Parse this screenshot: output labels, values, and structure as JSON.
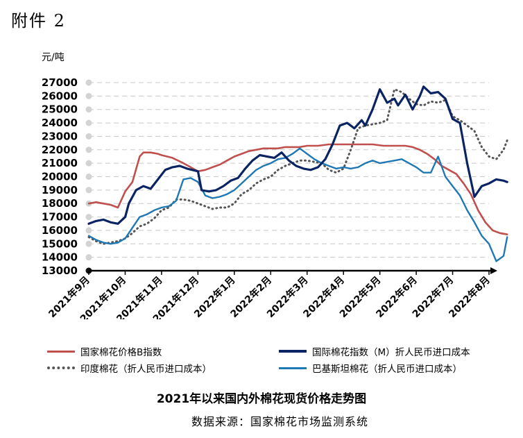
{
  "header": {
    "attachment": "附件 2",
    "unit": "元/吨"
  },
  "footer": {
    "title": "2021年以来国内外棉花现货价格走势图",
    "source": "数据来源：国家棉花市场监测系统"
  },
  "chart_data": {
    "type": "line",
    "title": "2021年以来国内外棉花现货价格走势图",
    "ylabel": "元/吨",
    "ylim": [
      13000,
      27000
    ],
    "ytick_step": 1000,
    "yticks": [
      "13000",
      "14000",
      "15000",
      "16000",
      "17000",
      "18000",
      "19000",
      "20000",
      "21000",
      "22000",
      "23000",
      "24000",
      "25000",
      "26000",
      "27000"
    ],
    "xticks": [
      "2021年9月",
      "2021年10月",
      "2021年11月",
      "2021年12月",
      "2022年1月",
      "2022年2月",
      "2022年3月",
      "2022年4月",
      "2022年5月",
      "2022年6月",
      "2022年7月",
      "2022年8月"
    ],
    "grid": true,
    "legend_position": "bottom",
    "colors": {
      "domestic": "#c0504d",
      "international": "#0a2463",
      "india": "#555555",
      "pakistan": "#1f78b4"
    },
    "series": [
      {
        "name": "国家棉花价格B指数",
        "style": "solid",
        "x": [
          0,
          0.2,
          0.4,
          0.6,
          0.8,
          1.0,
          1.2,
          1.4,
          1.5,
          1.7,
          1.9,
          2.0,
          2.3,
          2.6,
          2.8,
          3.0,
          3.2,
          3.4,
          3.6,
          3.8,
          4.0,
          4.2,
          4.4,
          4.6,
          4.8,
          5.0,
          5.2,
          5.4,
          5.6,
          5.8,
          6.0,
          6.3,
          6.6,
          6.9,
          7.2,
          7.5,
          7.8,
          8.1,
          8.4,
          8.7,
          8.9,
          9.1,
          9.3,
          9.5,
          9.7,
          9.9,
          10.1,
          10.3,
          10.5,
          10.7,
          10.9,
          11.1,
          11.3,
          11.5
        ],
        "y": [
          18000,
          18100,
          18000,
          17900,
          17700,
          18900,
          19600,
          21500,
          21800,
          21800,
          21700,
          21600,
          21400,
          21000,
          20700,
          20400,
          20500,
          20700,
          20900,
          21200,
          21500,
          21700,
          21900,
          22000,
          22100,
          22100,
          22100,
          22200,
          22200,
          22200,
          22300,
          22300,
          22400,
          22400,
          22400,
          22400,
          22400,
          22300,
          22300,
          22300,
          22200,
          22000,
          21700,
          21300,
          20800,
          20500,
          20200,
          19500,
          18700,
          17500,
          16600,
          16000,
          15800,
          15700
        ]
      },
      {
        "name": "国际棉花指数（M）折人民币进口成本",
        "style": "solid",
        "x": [
          0,
          0.2,
          0.4,
          0.6,
          0.8,
          1.0,
          1.1,
          1.3,
          1.5,
          1.7,
          1.9,
          2.1,
          2.3,
          2.5,
          2.7,
          3.0,
          3.1,
          3.3,
          3.5,
          3.7,
          3.9,
          4.1,
          4.3,
          4.5,
          4.7,
          4.9,
          5.1,
          5.3,
          5.5,
          5.7,
          5.9,
          6.1,
          6.3,
          6.5,
          6.7,
          6.9,
          7.1,
          7.3,
          7.5,
          7.6,
          7.8,
          8.0,
          8.2,
          8.4,
          8.5,
          8.7,
          8.9,
          9.1,
          9.2,
          9.4,
          9.6,
          9.8,
          10.0,
          10.2,
          10.4,
          10.6,
          10.8,
          11.0,
          11.2,
          11.4,
          11.5
        ],
        "y": [
          16500,
          16700,
          16800,
          16600,
          16500,
          17000,
          18000,
          19000,
          19300,
          19100,
          19800,
          20500,
          20700,
          20800,
          20600,
          20400,
          19000,
          18900,
          19000,
          19300,
          19700,
          19900,
          20600,
          21200,
          21600,
          21500,
          21400,
          21800,
          21200,
          20800,
          20600,
          20500,
          20700,
          21300,
          22400,
          23800,
          24000,
          23600,
          24200,
          23800,
          25000,
          26500,
          25500,
          25800,
          25300,
          26100,
          25000,
          26000,
          26700,
          26200,
          26300,
          25800,
          24300,
          24000,
          21000,
          18500,
          19300,
          19500,
          19800,
          19700,
          19600
        ]
      },
      {
        "name": "印度棉花（折人民币进口成本）",
        "style": "dotted",
        "x": [
          0,
          0.2,
          0.4,
          0.6,
          0.8,
          1.0,
          1.2,
          1.4,
          1.6,
          1.8,
          2.0,
          2.2,
          2.4,
          2.6,
          2.8,
          3.0,
          3.2,
          3.4,
          3.6,
          3.8,
          4.0,
          4.2,
          4.4,
          4.6,
          4.8,
          5.0,
          5.2,
          5.4,
          5.6,
          5.8,
          6.0,
          6.2,
          6.4,
          6.6,
          6.8,
          7.0,
          7.2,
          7.4,
          7.6,
          7.8,
          8.0,
          8.2,
          8.4,
          8.6,
          8.8,
          9.0,
          9.2,
          9.4,
          9.6,
          9.8,
          10.0,
          10.2,
          10.4,
          10.6,
          10.8,
          11.0,
          11.2,
          11.4,
          11.5
        ],
        "y": [
          15500,
          15200,
          15000,
          15100,
          15200,
          15400,
          15800,
          16300,
          16500,
          16900,
          17500,
          17700,
          18300,
          18300,
          18200,
          18000,
          17800,
          17600,
          17700,
          17700,
          18000,
          18700,
          19000,
          19500,
          19800,
          20000,
          20500,
          20800,
          21000,
          21200,
          21200,
          21100,
          21000,
          20500,
          20300,
          20600,
          22000,
          23600,
          23800,
          23900,
          24000,
          24200,
          26500,
          26300,
          25800,
          25400,
          25300,
          25600,
          25500,
          25700,
          24500,
          24200,
          23800,
          23400,
          22200,
          21500,
          21300,
          22000,
          22700
        ]
      },
      {
        "name": "巴基斯坦棉花（折人民币进口成本）",
        "style": "solid",
        "x": [
          0,
          0.2,
          0.4,
          0.6,
          0.8,
          1.0,
          1.2,
          1.4,
          1.6,
          1.8,
          2.0,
          2.2,
          2.4,
          2.6,
          2.8,
          3.0,
          3.2,
          3.4,
          3.6,
          3.8,
          4.0,
          4.2,
          4.4,
          4.6,
          4.8,
          5.0,
          5.2,
          5.4,
          5.6,
          5.8,
          6.0,
          6.2,
          6.4,
          6.6,
          6.8,
          7.0,
          7.2,
          7.4,
          7.6,
          7.8,
          8.0,
          8.2,
          8.4,
          8.6,
          8.8,
          9.0,
          9.2,
          9.4,
          9.6,
          9.8,
          10.0,
          10.2,
          10.4,
          10.6,
          10.8,
          11.0,
          11.2,
          11.4,
          11.5
        ],
        "y": [
          15600,
          15300,
          15100,
          15000,
          15100,
          15400,
          16200,
          17000,
          17200,
          17500,
          17700,
          17800,
          18200,
          19800,
          19900,
          19600,
          18600,
          18400,
          18500,
          18700,
          19000,
          19500,
          20000,
          20500,
          20800,
          21000,
          21300,
          21400,
          21700,
          22100,
          21700,
          21300,
          21000,
          20800,
          20600,
          20700,
          20600,
          20700,
          21000,
          21200,
          21000,
          21100,
          21200,
          21300,
          21000,
          20700,
          20300,
          20300,
          21500,
          20000,
          19300,
          18600,
          17500,
          16600,
          15600,
          15000,
          13700,
          14100,
          15500
        ]
      }
    ]
  }
}
